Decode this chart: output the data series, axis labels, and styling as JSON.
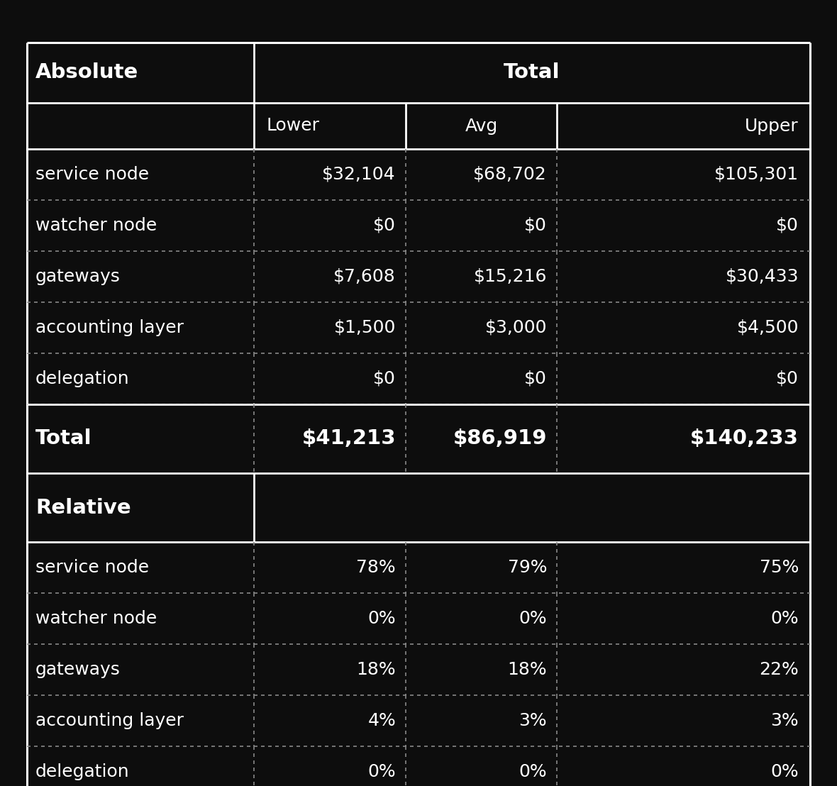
{
  "background_color": "#0d0d0d",
  "text_color": "#ffffff",
  "title": "Absolute",
  "col_header_main": "Total",
  "col_headers": [
    "Lower",
    "Avg",
    "Upper"
  ],
  "absolute_rows": [
    {
      "label": "service node",
      "lower": "$32,104",
      "avg": "$68,702",
      "upper": "$105,301"
    },
    {
      "label": "watcher node",
      "lower": "$0",
      "avg": "$0",
      "upper": "$0"
    },
    {
      "label": "gateways",
      "lower": "$7,608",
      "avg": "$15,216",
      "upper": "$30,433"
    },
    {
      "label": "accounting layer",
      "lower": "$1,500",
      "avg": "$3,000",
      "upper": "$4,500"
    },
    {
      "label": "delegation",
      "lower": "$0",
      "avg": "$0",
      "upper": "$0"
    }
  ],
  "total_row": {
    "label": "Total",
    "lower": "$41,213",
    "avg": "$86,919",
    "upper": "$140,233"
  },
  "relative_label": "Relative",
  "relative_rows": [
    {
      "label": "service node",
      "lower": "78%",
      "avg": "79%",
      "upper": "75%"
    },
    {
      "label": "watcher node",
      "lower": "0%",
      "avg": "0%",
      "upper": "0%"
    },
    {
      "label": "gateways",
      "lower": "18%",
      "avg": "18%",
      "upper": "22%"
    },
    {
      "label": "accounting layer",
      "lower": "4%",
      "avg": "3%",
      "upper": "3%"
    },
    {
      "label": "delegation",
      "lower": "0%",
      "avg": "0%",
      "upper": "0%"
    }
  ]
}
